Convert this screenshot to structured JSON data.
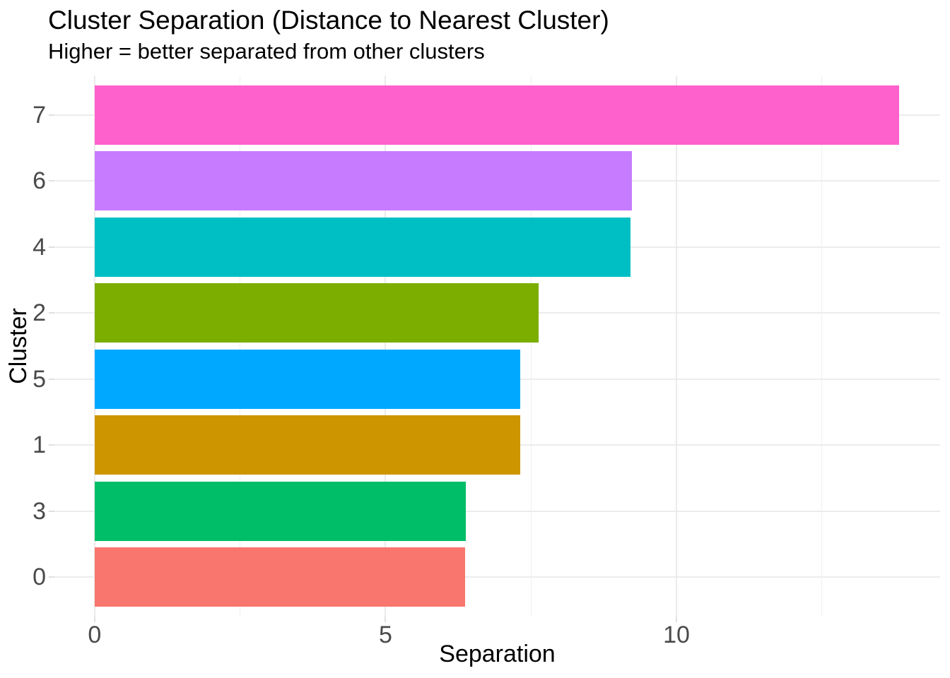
{
  "chart_data": {
    "type": "bar",
    "orientation": "horizontal",
    "title": "Cluster Separation (Distance to Nearest Cluster)",
    "subtitle": "Higher = better separated from other clusters",
    "xlabel": "Separation",
    "ylabel": "Cluster",
    "categories": [
      "7",
      "6",
      "4",
      "2",
      "5",
      "1",
      "3",
      "0"
    ],
    "values": [
      13.83,
      9.24,
      9.21,
      7.63,
      7.32,
      7.31,
      6.38,
      6.37
    ],
    "bar_colors": [
      "#FF61CC",
      "#C77CFF",
      "#00BFC4",
      "#7CAE00",
      "#00A9FF",
      "#CD9600",
      "#00BE67",
      "#F8766D"
    ],
    "x_major_ticks": [
      0,
      5,
      10
    ],
    "x_tick_labels": [
      "0",
      "5",
      "10"
    ],
    "x_minor_ticks": [
      2.5,
      7.5,
      12.5
    ],
    "xlim": [
      -0.69,
      14.53
    ],
    "grid": "major+minor, light gray on white",
    "legend_position": "none",
    "background_color": "#ffffff",
    "grid_color": "#ececec",
    "tick_label_color": "#4a4a4a",
    "bar_band_fill_fraction": 0.9
  }
}
